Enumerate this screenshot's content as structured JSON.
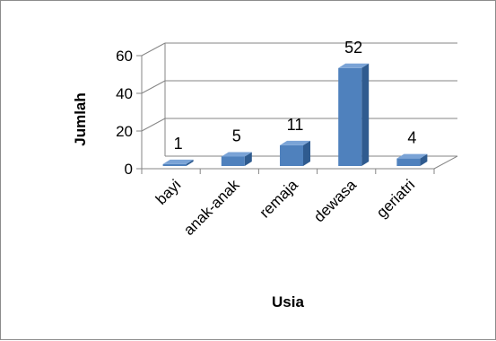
{
  "chart_data": {
    "type": "bar",
    "categories": [
      "bayi",
      "anak-anak",
      "remaja",
      "dewasa",
      "geriatri"
    ],
    "values": [
      1,
      5,
      11,
      52,
      4
    ],
    "data_labels": [
      "1",
      "5",
      "11",
      "52",
      "4"
    ],
    "xlabel": "Usia",
    "ylabel": "Jumlah",
    "ylim": [
      0,
      60
    ],
    "yticks": [
      "0",
      "20",
      "40",
      "60"
    ],
    "grid": true,
    "legend": "none",
    "style": "3d-column",
    "colors": {
      "bar_front": "#4f81bd",
      "bar_side": "#2f5b8f",
      "bar_top": "#7aa3d6",
      "grid": "#868686"
    }
  }
}
